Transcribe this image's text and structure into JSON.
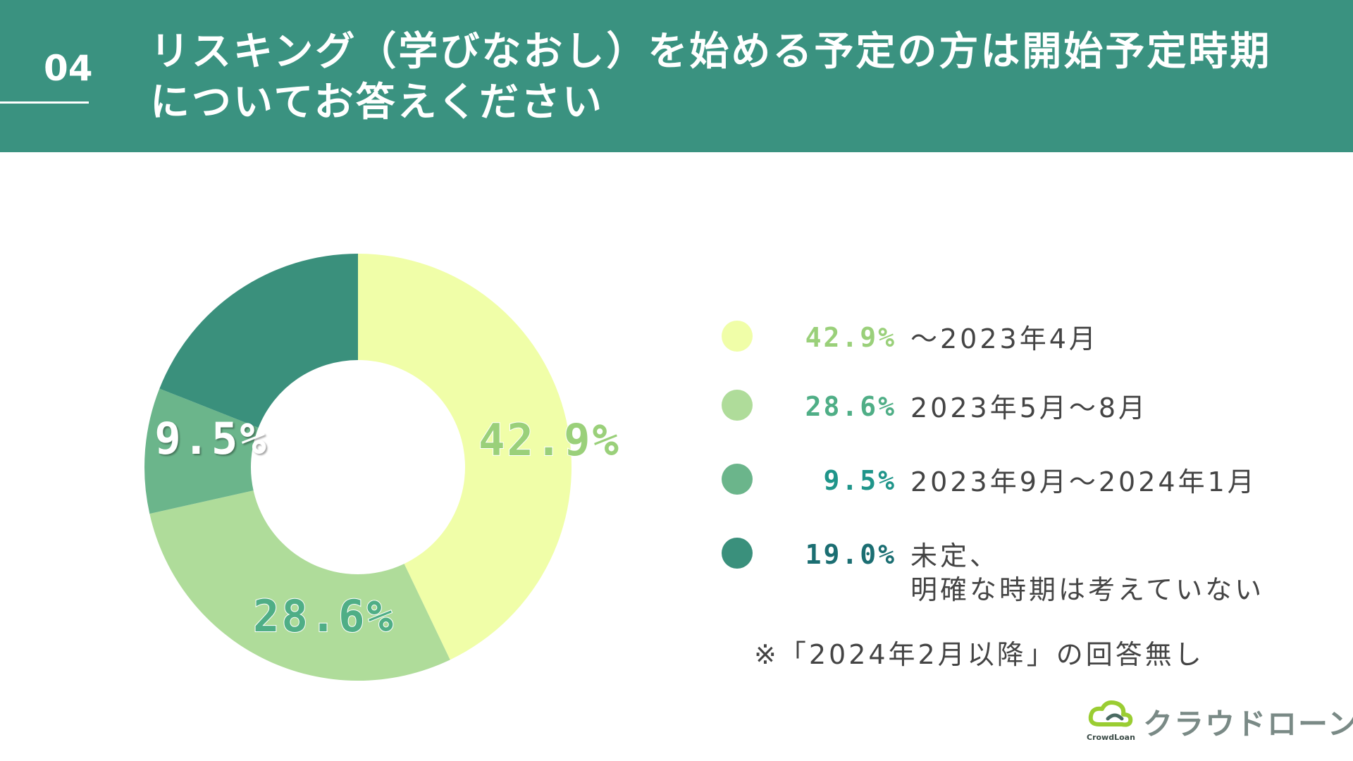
{
  "header": {
    "number": "04",
    "title_line1": "リスキング（学びなおし）を始める予定の方は開始予定時期",
    "title_line2": "についてお答えください"
  },
  "colors": {
    "header_bg": "#3a9280",
    "slice1": "#f0fea8",
    "slice2": "#afdc9a",
    "slice3": "#6bb58b",
    "slice4": "#3a907c",
    "pct1": "#9ad07a",
    "pct2": "#4fae86",
    "pct3": "#1f958a",
    "pct4": "#1b6e72"
  },
  "chart_data": {
    "type": "pie",
    "donut": true,
    "categories": [
      "～2023年4月",
      "2023年5月～8月",
      "2023年9月～2024年1月",
      "未定、明確な時期は考えていない"
    ],
    "values": [
      42.9,
      28.6,
      9.5,
      19.0
    ],
    "value_labels": [
      "42.9%",
      "28.6%",
      "9.5%",
      "19.0%"
    ],
    "legend_placement": "right"
  },
  "legend": [
    {
      "pct": "42.9%",
      "line1": "～2023年4月",
      "line2": ""
    },
    {
      "pct": "28.6%",
      "line1": "2023年5月～8月",
      "line2": ""
    },
    {
      "pct": "9.5%",
      "line1": "2023年9月～2024年1月",
      "line2": ""
    },
    {
      "pct": "19.0%",
      "line1": "未定、",
      "line2": "明確な時期は考えていない"
    }
  ],
  "note": "※「2024年2月以降」の回答無し",
  "logo": {
    "text": "クラウドローン",
    "sub": "CrowdLoan",
    "icon": "cloud-icon"
  }
}
